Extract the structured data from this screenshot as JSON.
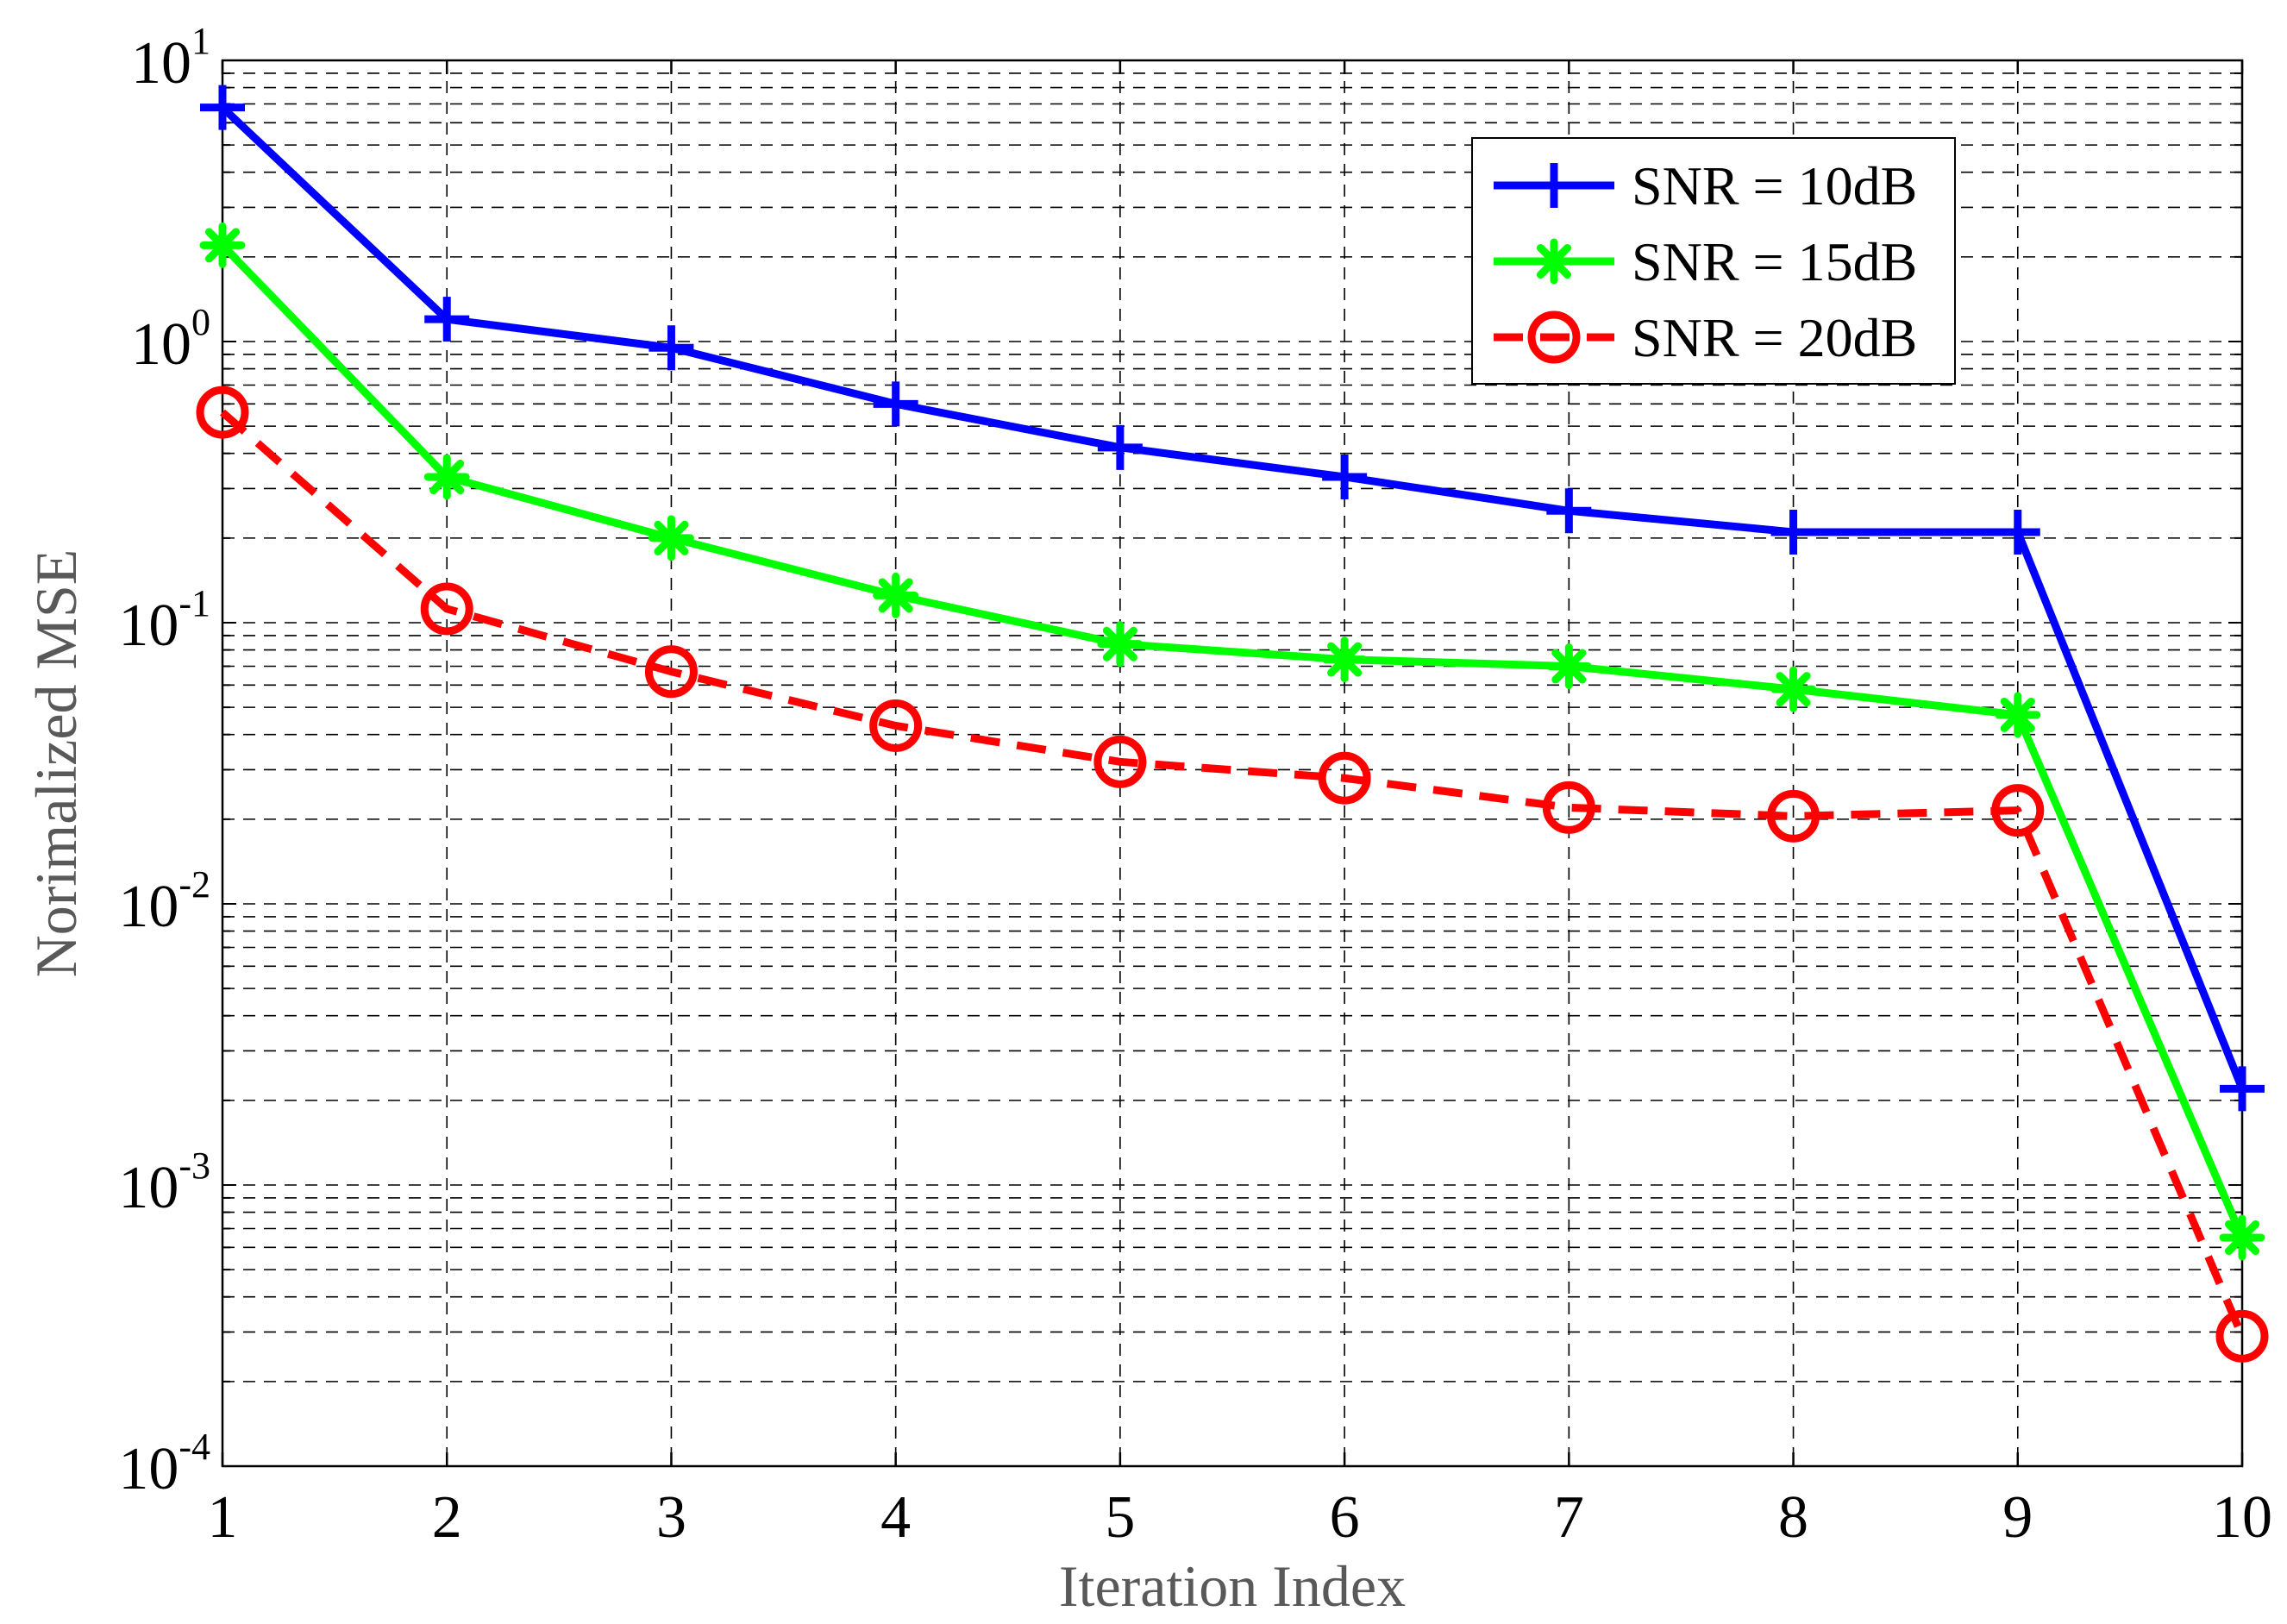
{
  "chart_data": {
    "type": "line",
    "title": "",
    "xlabel": "Iteration Index",
    "ylabel": "Norimalized MSE",
    "x": [
      1,
      2,
      3,
      4,
      5,
      6,
      7,
      8,
      9,
      10
    ],
    "xlim": [
      1,
      10
    ],
    "ylim": [
      0.0001,
      10
    ],
    "yscale": "log",
    "grid": true,
    "legend_position": "top-right",
    "x_tick_labels": [
      "1",
      "2",
      "3",
      "4",
      "5",
      "6",
      "7",
      "8",
      "9",
      "10"
    ],
    "y_ticks": [
      {
        "value": 10,
        "base": "10",
        "exp": "1"
      },
      {
        "value": 1,
        "base": "10",
        "exp": "0"
      },
      {
        "value": 0.1,
        "base": "10",
        "exp": "-1"
      },
      {
        "value": 0.01,
        "base": "10",
        "exp": "-2"
      },
      {
        "value": 0.001,
        "base": "10",
        "exp": "-3"
      },
      {
        "value": 0.0001,
        "base": "10",
        "exp": "-4"
      }
    ],
    "series": [
      {
        "name": "SNR = 10dB",
        "color": "#0000ff",
        "marker": "plus",
        "line_style": "solid",
        "values": [
          6.8,
          1.2,
          0.95,
          0.6,
          0.42,
          0.33,
          0.25,
          0.21,
          0.21,
          0.0022
        ]
      },
      {
        "name": "SNR = 15dB",
        "color": "#00ff00",
        "marker": "asterisk",
        "line_style": "solid",
        "values": [
          2.2,
          0.33,
          0.2,
          0.125,
          0.084,
          0.074,
          0.07,
          0.058,
          0.047,
          0.00065
        ]
      },
      {
        "name": "SNR = 20dB",
        "color": "#ff0000",
        "marker": "circle",
        "line_style": "dashed",
        "values": [
          0.56,
          0.112,
          0.067,
          0.043,
          0.032,
          0.028,
          0.022,
          0.0205,
          0.0215,
          0.00029
        ]
      }
    ]
  }
}
